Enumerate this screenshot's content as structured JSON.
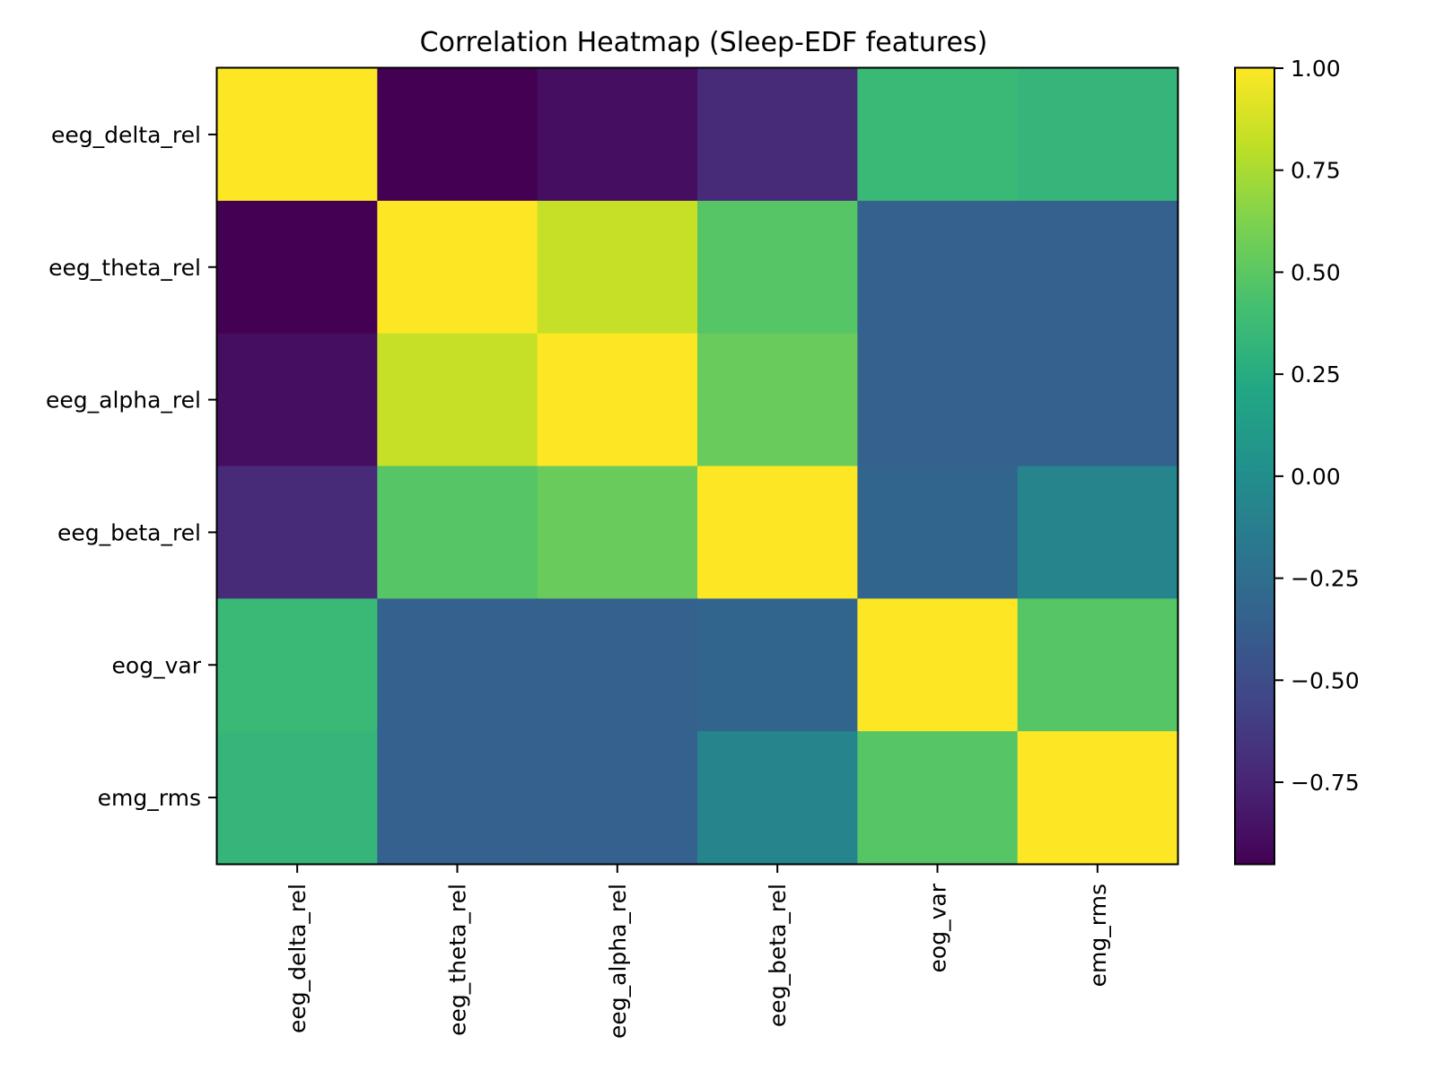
{
  "chart_data": {
    "type": "heatmap",
    "title": "Correlation Heatmap (Sleep-EDF features)",
    "xlabel": "",
    "ylabel": "",
    "x_categories": [
      "eeg_delta_rel",
      "eeg_theta_rel",
      "eeg_alpha_rel",
      "eeg_beta_rel",
      "eog_var",
      "emg_rms"
    ],
    "y_categories": [
      "eeg_delta_rel",
      "eeg_theta_rel",
      "eeg_alpha_rel",
      "eeg_beta_rel",
      "eog_var",
      "emg_rms"
    ],
    "values": [
      [
        1.0,
        -0.95,
        -0.88,
        -0.72,
        0.36,
        0.33
      ],
      [
        -0.95,
        1.0,
        0.83,
        0.48,
        -0.35,
        -0.35
      ],
      [
        -0.88,
        0.83,
        1.0,
        0.55,
        -0.35,
        -0.35
      ],
      [
        -0.72,
        0.48,
        0.55,
        1.0,
        -0.32,
        -0.08
      ],
      [
        0.36,
        -0.35,
        -0.35,
        -0.32,
        1.0,
        0.48
      ],
      [
        0.33,
        -0.35,
        -0.35,
        -0.08,
        0.48,
        1.0
      ]
    ],
    "colormap": "viridis",
    "vmin": -0.95,
    "vmax": 1.0,
    "colorbar": {
      "ticks": [
        1.0,
        0.75,
        0.5,
        0.25,
        0.0,
        -0.25,
        -0.5,
        -0.75
      ],
      "tick_labels": [
        "1.00",
        "0.75",
        "0.50",
        "0.25",
        "0.00",
        "−0.25",
        "−0.50",
        "−0.75"
      ]
    },
    "grid": false,
    "legend": "colorbar-right"
  },
  "colors": {
    "background": "#ffffff",
    "axis": "#000000",
    "text": "#000000"
  }
}
